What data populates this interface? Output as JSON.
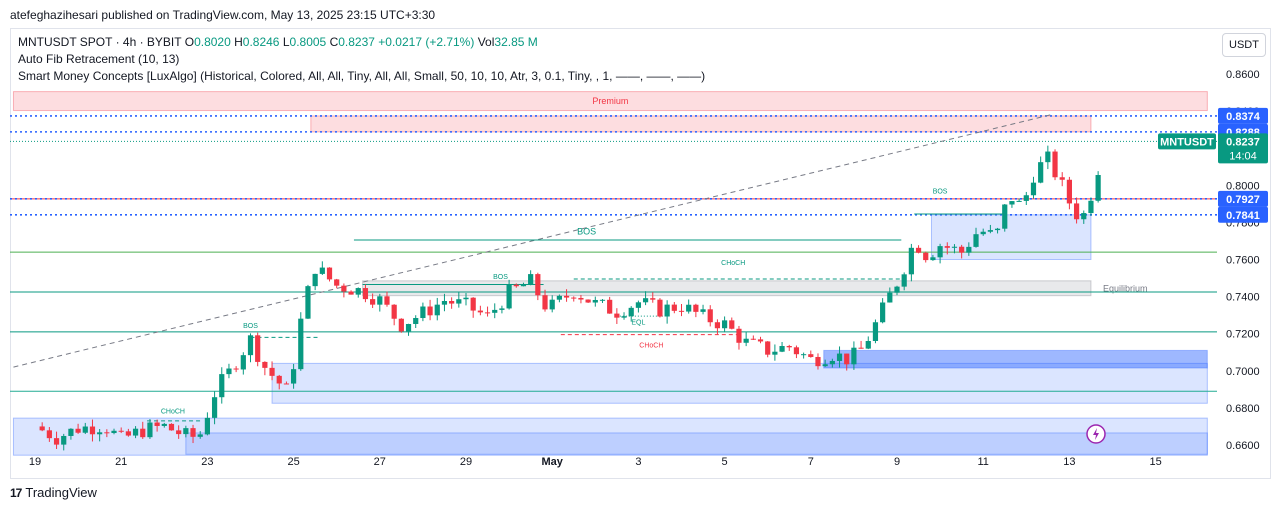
{
  "header": {
    "publisher_line": "atefeghazihesari published on TradingView.com, May 13, 2025 23:15 UTC+3:30"
  },
  "legend": {
    "symbol": "MNTUSDT SPOT · 4h · BYBIT",
    "open_label": "O",
    "open": "0.8020",
    "high_label": "H",
    "high": "0.8246",
    "low_label": "L",
    "low": "0.8005",
    "close_label": "C",
    "close": "0.8237",
    "change": "+0.0217 (+2.71%)",
    "vol_label": "Vol",
    "vol": "32.85 M",
    "indicator1": "Auto Fib Retracement (10, 13)",
    "indicator2": "Smart Money Concepts [LuxAlgo] (Historical, Colored, All, All, Tiny, All, All, Small, 50, 10, 10, Atr, 3, 0.1, Tiny, , 1, ——, ——, ——)"
  },
  "currency_button": "USDT",
  "footer": {
    "brand": "TradingView",
    "logo": "17"
  },
  "chart_data": {
    "type": "candlestick",
    "symbol": "MNTUSDT",
    "timeframe": "4h",
    "ylim": [
      0.654,
      0.8705
    ],
    "y_ticks": [
      "0.6600",
      "0.6800",
      "0.7000",
      "0.7200",
      "0.7400",
      "0.7600",
      "0.7800",
      "0.8000",
      "0.8200",
      "0.8400",
      "0.8600"
    ],
    "x_ticks": [
      {
        "label": "19",
        "day": 0
      },
      {
        "label": "21",
        "day": 2
      },
      {
        "label": "23",
        "day": 4
      },
      {
        "label": "25",
        "day": 6
      },
      {
        "label": "27",
        "day": 8
      },
      {
        "label": "29",
        "day": 10
      },
      {
        "label": "May",
        "day": 12
      },
      {
        "label": "3",
        "day": 14
      },
      {
        "label": "5",
        "day": 16
      },
      {
        "label": "7",
        "day": 18
      },
      {
        "label": "9",
        "day": 20
      },
      {
        "label": "11",
        "day": 22
      },
      {
        "label": "13",
        "day": 24
      },
      {
        "label": "15",
        "day": 26
      }
    ],
    "price_labels": [
      {
        "value": 0.8374,
        "text": "0.8374",
        "color": "#2962ff"
      },
      {
        "value": 0.8288,
        "text": "0.8288",
        "color": "#2962ff"
      },
      {
        "value": 0.7927,
        "text": "0.7927",
        "color": "#2962ff"
      },
      {
        "value": 0.7841,
        "text": "0.7841",
        "color": "#2962ff"
      }
    ],
    "last_price": {
      "value": 0.8237,
      "text": "0.8237",
      "symbol": "MNTUSDT",
      "countdown": "14:04",
      "color": "#089981"
    },
    "zones": [
      {
        "name": "premium",
        "label": "Premium",
        "y0": 0.8403,
        "y1": 0.8505,
        "day0": -0.5,
        "day1": 27.2,
        "color": "#f23645"
      },
      {
        "name": "premium-inner",
        "label": "",
        "y0": 0.8288,
        "y1": 0.8374,
        "day0": 6.4,
        "day1": 24.5,
        "color": "#f23645"
      },
      {
        "name": "equilibrium",
        "label": "Equilibrium",
        "y0": 0.7405,
        "y1": 0.7485,
        "day0": 7.6,
        "day1": 24.5,
        "color": "#787b86"
      },
      {
        "name": "demand-upper",
        "label": "",
        "y0": 0.76,
        "y1": 0.7841,
        "day0": 20.8,
        "day1": 24.5,
        "color": "#2962ff"
      },
      {
        "name": "demand-mid",
        "label": "",
        "y0": 0.6825,
        "y1": 0.704,
        "day0": 5.5,
        "day1": 27.2,
        "color": "#2962ff"
      },
      {
        "name": "demand-order-block",
        "label": "",
        "y0": 0.7015,
        "y1": 0.711,
        "day0": 18.3,
        "day1": 27.2,
        "color": "#2962ff"
      },
      {
        "name": "discount",
        "label": "",
        "y0": 0.6545,
        "y1": 0.6745,
        "day0": -0.5,
        "day1": 27.2,
        "color": "#2962ff"
      },
      {
        "name": "discount-inner",
        "label": "",
        "y0": 0.655,
        "y1": 0.6665,
        "day0": 3.5,
        "day1": 27.2,
        "color": "#2962ff"
      }
    ],
    "hlines": [
      {
        "value": 0.764,
        "color": "#4caf50"
      },
      {
        "value": 0.7425,
        "color": "#089981"
      },
      {
        "value": 0.721,
        "color": "#089981"
      },
      {
        "value": 0.689,
        "color": "#22ab94"
      },
      {
        "value": 0.7927,
        "color": "#f23645"
      }
    ],
    "structure_labels": [
      {
        "text": "BOS",
        "day": 12.8,
        "value": 0.7735,
        "color": "#089981"
      },
      {
        "text": "BOS",
        "day": 10.8,
        "value": 0.7495,
        "color": "#089981"
      },
      {
        "text": "BOS",
        "day": 5.0,
        "value": 0.723,
        "color": "#089981"
      },
      {
        "text": "CHoCH",
        "day": 16.2,
        "value": 0.757,
        "color": "#089981"
      },
      {
        "text": "CHoCH",
        "day": 3.2,
        "value": 0.677,
        "color": "#089981"
      },
      {
        "text": "EQL",
        "day": 14.0,
        "value": 0.725,
        "color": "#089981"
      },
      {
        "text": "CHoCH",
        "day": 14.3,
        "value": 0.7125,
        "color": "#f23645"
      },
      {
        "text": "BOS",
        "day": 21.0,
        "value": 0.7955,
        "color": "#089981"
      }
    ],
    "structure_lines": [
      {
        "day0": 7.4,
        "day1": 20.1,
        "value": 0.7705,
        "style": "solid",
        "color": "#089981"
      },
      {
        "day0": 7.6,
        "day1": 11.8,
        "value": 0.7465,
        "style": "solid",
        "color": "#089981"
      },
      {
        "day0": 5.0,
        "day1": 6.6,
        "value": 0.718,
        "style": "dashed",
        "color": "#089981"
      },
      {
        "day0": 12.5,
        "day1": 20.2,
        "value": 0.7495,
        "style": "dashed",
        "color": "#089981"
      },
      {
        "day0": 2.6,
        "day1": 3.9,
        "value": 0.673,
        "style": "dashed",
        "color": "#089981"
      },
      {
        "day0": 12.2,
        "day1": 16.4,
        "value": 0.7195,
        "style": "dashed",
        "color": "#f23645"
      },
      {
        "day0": 13.5,
        "day1": 14.6,
        "value": 0.7295,
        "style": "dotted",
        "color": "#089981"
      },
      {
        "day0": 20.4,
        "day1": 22.5,
        "value": 0.7845,
        "style": "solid",
        "color": "#089981"
      }
    ],
    "trendline": {
      "day0": -0.5,
      "value0": 0.702,
      "day1": 23.6,
      "value1": 0.8382,
      "color": "#787b86"
    },
    "anchors": [
      {
        "day": 0,
        "value": 0.67
      },
      {
        "day": 0.5,
        "value": 0.664
      },
      {
        "day": 1,
        "value": 0.669
      },
      {
        "day": 1.6,
        "value": 0.6705
      },
      {
        "day": 2.0,
        "value": 0.663
      },
      {
        "day": 2.5,
        "value": 0.668
      },
      {
        "day": 3.0,
        "value": 0.67
      },
      {
        "day": 3.5,
        "value": 0.665
      },
      {
        "day": 3.8,
        "value": 0.664
      },
      {
        "day": 4.2,
        "value": 0.69
      },
      {
        "day": 4.5,
        "value": 0.699
      },
      {
        "day": 5.0,
        "value": 0.717
      },
      {
        "day": 5.3,
        "value": 0.703
      },
      {
        "day": 5.6,
        "value": 0.695
      },
      {
        "day": 5.9,
        "value": 0.688
      },
      {
        "day": 6.1,
        "value": 0.72
      },
      {
        "day": 6.3,
        "value": 0.74
      },
      {
        "day": 6.5,
        "value": 0.756
      },
      {
        "day": 7.0,
        "value": 0.746
      },
      {
        "day": 7.6,
        "value": 0.743
      },
      {
        "day": 8.0,
        "value": 0.738
      },
      {
        "day": 8.5,
        "value": 0.725
      },
      {
        "day": 9.0,
        "value": 0.731
      },
      {
        "day": 9.5,
        "value": 0.738
      },
      {
        "day": 10.0,
        "value": 0.735
      },
      {
        "day": 10.5,
        "value": 0.729
      },
      {
        "day": 11.0,
        "value": 0.742
      },
      {
        "day": 11.5,
        "value": 0.748
      },
      {
        "day": 11.9,
        "value": 0.733
      },
      {
        "day": 12.5,
        "value": 0.743
      },
      {
        "day": 13.0,
        "value": 0.736
      },
      {
        "day": 13.5,
        "value": 0.732
      },
      {
        "day": 14.0,
        "value": 0.737
      },
      {
        "day": 14.5,
        "value": 0.733
      },
      {
        "day": 15.0,
        "value": 0.735
      },
      {
        "day": 15.5,
        "value": 0.729
      },
      {
        "day": 16.0,
        "value": 0.725
      },
      {
        "day": 16.5,
        "value": 0.715
      },
      {
        "day": 17.0,
        "value": 0.711
      },
      {
        "day": 17.5,
        "value": 0.713
      },
      {
        "day": 18.0,
        "value": 0.706
      },
      {
        "day": 18.5,
        "value": 0.709
      },
      {
        "day": 18.9,
        "value": 0.706
      },
      {
        "day": 19.2,
        "value": 0.712
      },
      {
        "day": 19.5,
        "value": 0.725
      },
      {
        "day": 19.8,
        "value": 0.739
      },
      {
        "day": 20.1,
        "value": 0.752
      },
      {
        "day": 20.4,
        "value": 0.77
      },
      {
        "day": 20.7,
        "value": 0.762
      },
      {
        "day": 21.0,
        "value": 0.768
      },
      {
        "day": 21.5,
        "value": 0.764
      },
      {
        "day": 21.9,
        "value": 0.776
      },
      {
        "day": 22.3,
        "value": 0.772
      },
      {
        "day": 22.6,
        "value": 0.795
      },
      {
        "day": 22.9,
        "value": 0.788
      },
      {
        "day": 23.2,
        "value": 0.808
      },
      {
        "day": 23.5,
        "value": 0.814
      },
      {
        "day": 23.8,
        "value": 0.801
      },
      {
        "day": 24.1,
        "value": 0.786
      },
      {
        "day": 24.3,
        "value": 0.782
      },
      {
        "day": 24.6,
        "value": 0.802
      },
      {
        "day": 24.8,
        "value": 0.8237
      }
    ]
  }
}
